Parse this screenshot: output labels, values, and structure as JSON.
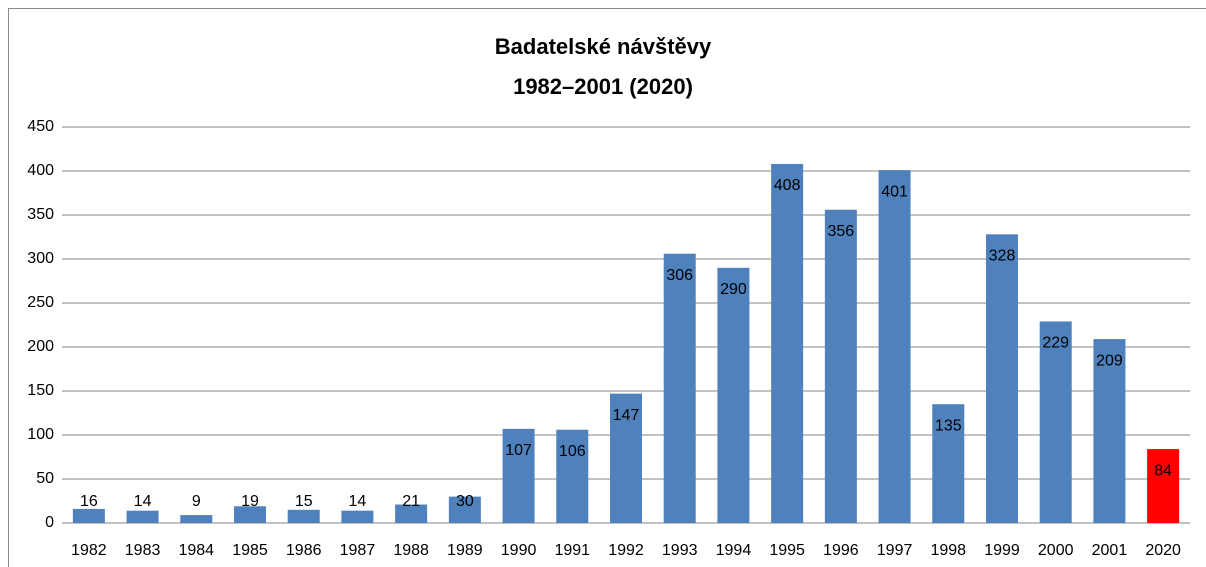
{
  "chart_data": {
    "type": "bar",
    "title": [
      "Badatelské návštěvy",
      "1982–2001 (2020)"
    ],
    "categories": [
      "1982",
      "1983",
      "1984",
      "1985",
      "1986",
      "1987",
      "1988",
      "1989",
      "1990",
      "1991",
      "1992",
      "1993",
      "1994",
      "1995",
      "1996",
      "1997",
      "1998",
      "1999",
      "2000",
      "2001",
      "2020"
    ],
    "values": [
      16,
      14,
      9,
      19,
      15,
      14,
      21,
      30,
      107,
      106,
      147,
      306,
      290,
      408,
      356,
      401,
      135,
      328,
      229,
      209,
      84
    ],
    "colors": [
      "#4f81bd",
      "#4f81bd",
      "#4f81bd",
      "#4f81bd",
      "#4f81bd",
      "#4f81bd",
      "#4f81bd",
      "#4f81bd",
      "#4f81bd",
      "#4f81bd",
      "#4f81bd",
      "#4f81bd",
      "#4f81bd",
      "#4f81bd",
      "#4f81bd",
      "#4f81bd",
      "#4f81bd",
      "#4f81bd",
      "#4f81bd",
      "#4f81bd",
      "#ff0000"
    ],
    "ylim": [
      0,
      450
    ],
    "yticks": [
      0,
      50,
      100,
      150,
      200,
      250,
      300,
      350,
      400,
      450
    ],
    "grid": true,
    "data_labels": true
  }
}
